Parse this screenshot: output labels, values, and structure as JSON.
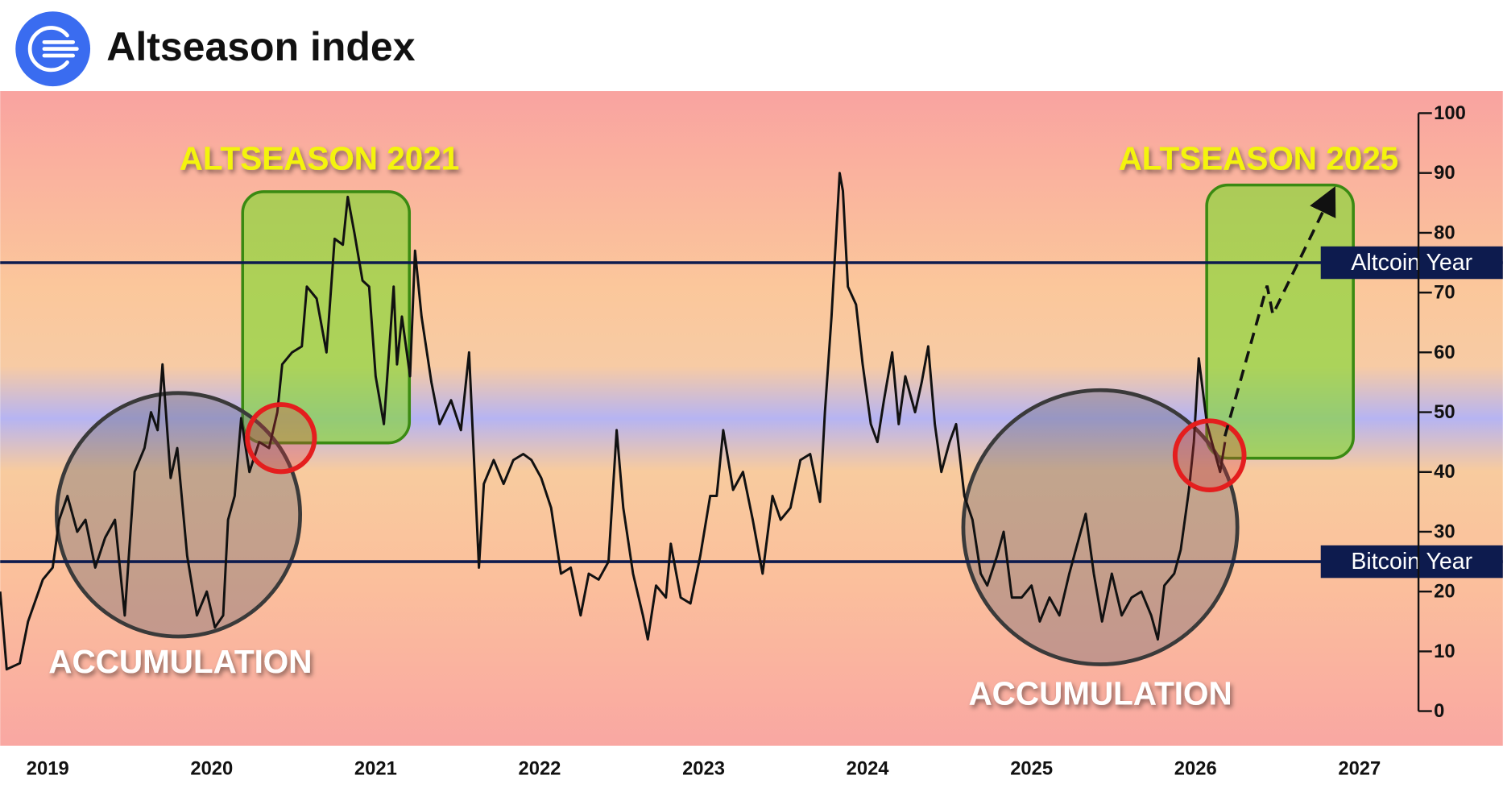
{
  "chart_data": {
    "type": "line",
    "title": "Altseason index",
    "color": "#111111",
    "x": [
      2018.71,
      2018.75,
      2018.83,
      2018.88,
      2018.97,
      2019.03,
      2019.07,
      2019.12,
      2019.18,
      2019.23,
      2019.29,
      2019.35,
      2019.41,
      2019.47,
      2019.53,
      2019.59,
      2019.63,
      2019.67,
      2019.7,
      2019.75,
      2019.79,
      2019.85,
      2019.91,
      2019.97,
      2020.02,
      2020.07,
      2020.1,
      2020.14,
      2020.18,
      2020.23,
      2020.29,
      2020.35,
      2020.4,
      2020.43,
      2020.49,
      2020.55,
      2020.58,
      2020.64,
      2020.7,
      2020.75,
      2020.8,
      2020.83,
      2020.87,
      2020.92,
      2020.96,
      2021.0,
      2021.05,
      2021.11,
      2021.13,
      2021.16,
      2021.21,
      2021.24,
      2021.28,
      2021.34,
      2021.39,
      2021.46,
      2021.52,
      2021.57,
      2021.63,
      2021.66,
      2021.72,
      2021.78,
      2021.84,
      2021.9,
      2021.95,
      2022.01,
      2022.07,
      2022.13,
      2022.19,
      2022.25,
      2022.3,
      2022.36,
      2022.42,
      2022.47,
      2022.51,
      2022.57,
      2022.63,
      2022.66,
      2022.71,
      2022.77,
      2022.8,
      2022.86,
      2022.92,
      2022.98,
      2023.04,
      2023.08,
      2023.12,
      2023.18,
      2023.24,
      2023.3,
      2023.36,
      2023.42,
      2023.47,
      2023.53,
      2023.59,
      2023.65,
      2023.71,
      2023.74,
      2023.78,
      2023.83,
      2023.85,
      2023.88,
      2023.93,
      2023.97,
      2024.02,
      2024.06,
      2024.1,
      2024.15,
      2024.19,
      2024.23,
      2024.29,
      2024.33,
      2024.37,
      2024.41,
      2024.45,
      2024.5,
      2024.54,
      2024.59,
      2024.64,
      2024.69,
      2024.73,
      2024.79,
      2024.83,
      2024.88,
      2024.94,
      2025.0,
      2025.05,
      2025.11,
      2025.17,
      2025.23,
      2025.27,
      2025.33,
      2025.38,
      2025.43,
      2025.49,
      2025.55,
      2025.61,
      2025.67,
      2025.73,
      2025.77,
      2025.81,
      2025.87,
      2025.91,
      2025.96,
      2025.99,
      2026.02,
      2026.07,
      2026.11,
      2026.15,
      2026.18
    ],
    "values": [
      20,
      7,
      8,
      15,
      22,
      24,
      32,
      36,
      30,
      32,
      24,
      29,
      32,
      16,
      40,
      44,
      50,
      47,
      58,
      39,
      44,
      26,
      16,
      20,
      14,
      16,
      32,
      36,
      49,
      40,
      45,
      44,
      50,
      58,
      60,
      61,
      71,
      69,
      60,
      79,
      78,
      86,
      80,
      72,
      71,
      56,
      48,
      71,
      58,
      66,
      56,
      77,
      66,
      55,
      48,
      52,
      47,
      60,
      24,
      38,
      42,
      38,
      42,
      43,
      42,
      39,
      34,
      23,
      24,
      16,
      23,
      22,
      25,
      47,
      34,
      23,
      16,
      12,
      21,
      19,
      28,
      19,
      18,
      26,
      36,
      36,
      47,
      37,
      40,
      32,
      23,
      36,
      32,
      34,
      42,
      43,
      35,
      50,
      66,
      90,
      87,
      71,
      68,
      58,
      48,
      45,
      52,
      60,
      48,
      56,
      50,
      55,
      61,
      48,
      40,
      45,
      48,
      36,
      32,
      23,
      21,
      26,
      30,
      19,
      19,
      21,
      15,
      19,
      16,
      23,
      27,
      33,
      23,
      15,
      23,
      16,
      19,
      20,
      16,
      12,
      21,
      23,
      27,
      37,
      45,
      59,
      48,
      44,
      40,
      45
    ],
    "xlim": [
      2018.71,
      2027.36
    ],
    "ylim": [
      -5.8,
      103.7
    ],
    "xticks": [
      2019,
      2020,
      2021,
      2022,
      2023,
      2024,
      2025,
      2026,
      2027
    ],
    "yticks": [
      0,
      10,
      20,
      30,
      40,
      50,
      60,
      70,
      80,
      90,
      100
    ],
    "y_axis_side": "right",
    "reference_lines": [
      {
        "label": "Altcoin Year",
        "value": 75
      },
      {
        "label": "Bitcoin Year",
        "value": 25
      }
    ],
    "annotations": [
      "ALTSEASON 2021",
      "ALTSEASON 2025",
      "ACCUMULATION",
      "ACCUMULATION"
    ]
  }
}
